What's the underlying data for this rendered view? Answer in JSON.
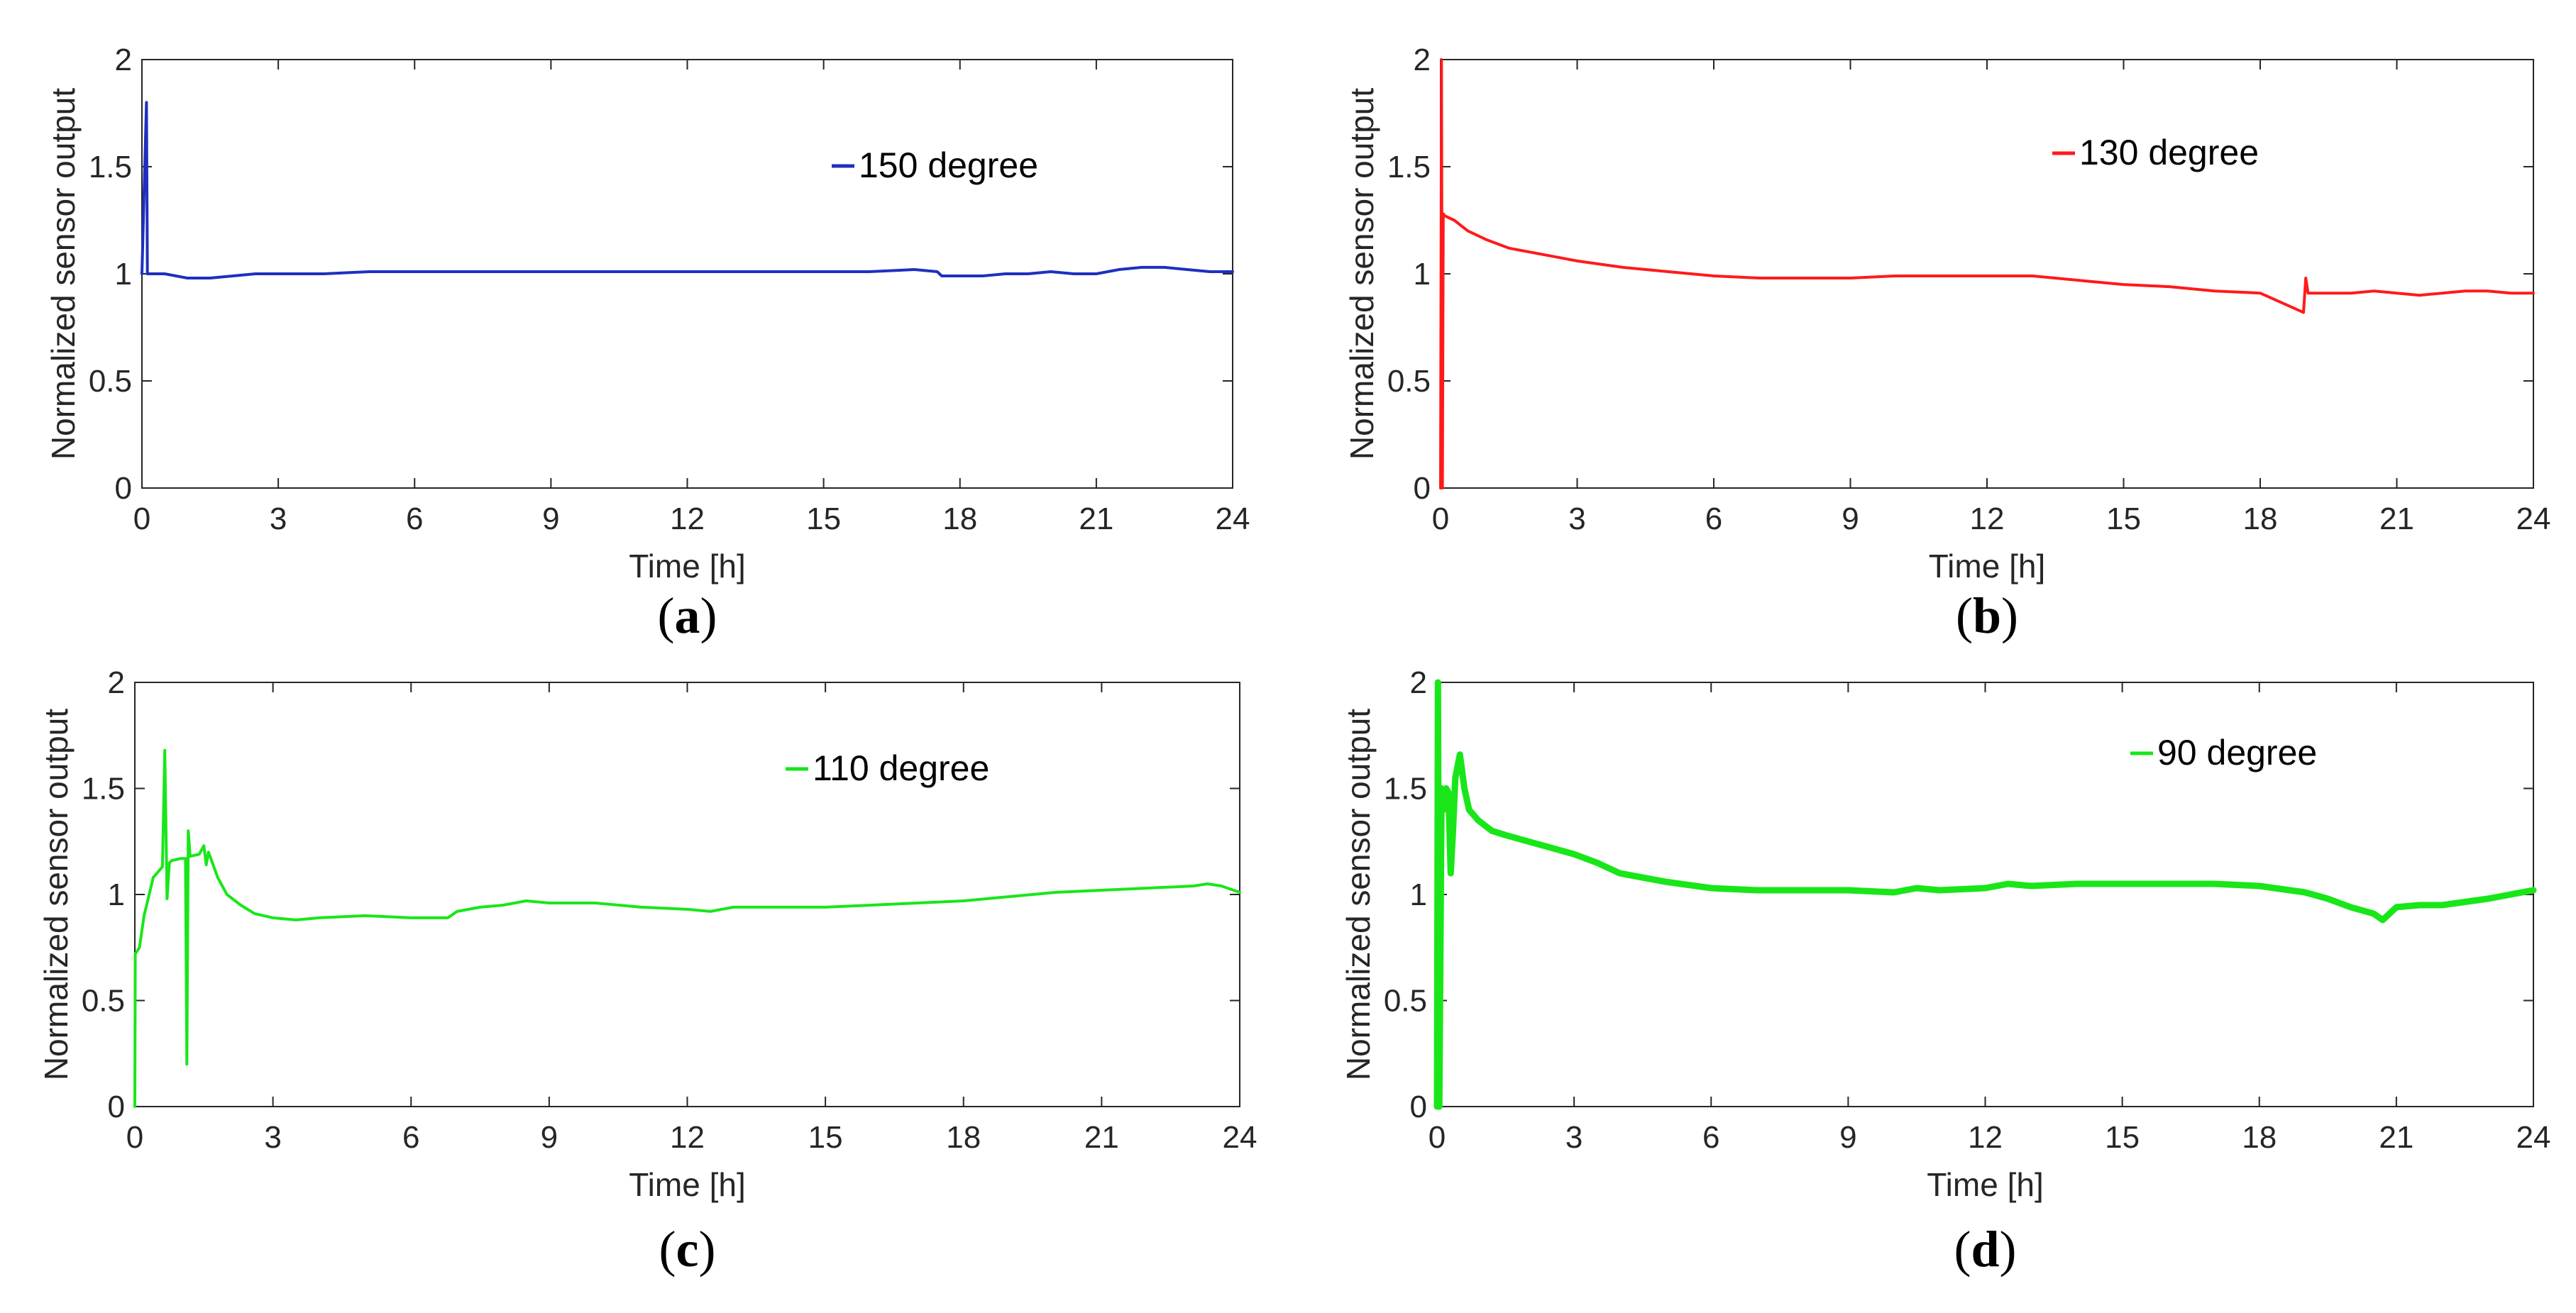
{
  "chart_data": [
    {
      "panel": "a",
      "panel_label": "a",
      "type": "line",
      "xlabel": "Time [h]",
      "ylabel": "Normalized sensor output",
      "xlim": [
        0,
        24
      ],
      "ylim": [
        0,
        2
      ],
      "xticks": [
        0,
        3,
        6,
        9,
        12,
        15,
        18,
        21,
        24
      ],
      "yticks": [
        0,
        0.5,
        1,
        1.5,
        2
      ],
      "legend_position": "top-right",
      "series": [
        {
          "name": "150 degree",
          "color": "#1f2fbf",
          "x": [
            0,
            0.1,
            0.12,
            0.2,
            0.5,
            1.0,
            1.5,
            2.0,
            2.5,
            3,
            4,
            5,
            6,
            7,
            8,
            9,
            10,
            11,
            12,
            13,
            14,
            15,
            16,
            17,
            17.5,
            17.6,
            18,
            18.5,
            19,
            19.5,
            20,
            20.5,
            21,
            21.5,
            22,
            22.5,
            23,
            23.5,
            24
          ],
          "values": [
            1.0,
            1.8,
            1.0,
            1.0,
            1.0,
            0.98,
            0.98,
            0.99,
            1.0,
            1.0,
            1.0,
            1.01,
            1.01,
            1.01,
            1.01,
            1.01,
            1.01,
            1.01,
            1.01,
            1.01,
            1.01,
            1.01,
            1.01,
            1.02,
            1.01,
            0.99,
            0.99,
            0.99,
            1.0,
            1.0,
            1.01,
            1.0,
            1.0,
            1.02,
            1.03,
            1.03,
            1.02,
            1.01,
            1.01
          ]
        }
      ]
    },
    {
      "panel": "b",
      "panel_label": "b",
      "type": "line",
      "xlabel": "Time [h]",
      "ylabel": "Normalized sensor output",
      "xlim": [
        0,
        24
      ],
      "ylim": [
        0,
        2
      ],
      "xticks": [
        0,
        3,
        6,
        9,
        12,
        15,
        18,
        21,
        24
      ],
      "yticks": [
        0,
        0.5,
        1,
        1.5,
        2
      ],
      "legend_position": "top-right",
      "series": [
        {
          "name": "130 degree",
          "color": "#ff1a1a",
          "x": [
            0,
            0.02,
            0.04,
            0.06,
            0.1,
            0.3,
            0.6,
            1.0,
            1.5,
            2.0,
            2.5,
            3,
            4,
            5,
            6,
            7,
            8,
            9,
            10,
            11,
            12,
            13,
            14,
            15,
            16,
            17,
            18,
            18.95,
            19.0,
            19.05,
            19.1,
            20,
            20.5,
            21,
            21.5,
            22,
            22.5,
            23,
            23.5,
            24
          ],
          "values": [
            0.0,
            2.0,
            0.0,
            1.28,
            1.27,
            1.25,
            1.2,
            1.16,
            1.12,
            1.1,
            1.08,
            1.06,
            1.03,
            1.01,
            0.99,
            0.98,
            0.98,
            0.98,
            0.99,
            0.99,
            0.99,
            0.99,
            0.97,
            0.95,
            0.94,
            0.92,
            0.91,
            0.82,
            0.98,
            0.91,
            0.91,
            0.91,
            0.92,
            0.91,
            0.9,
            0.91,
            0.92,
            0.92,
            0.91,
            0.91
          ]
        }
      ]
    },
    {
      "panel": "c",
      "panel_label": "c",
      "type": "line",
      "xlabel": "Time [h]",
      "ylabel": "Normalized sensor output",
      "xlim": [
        0,
        24
      ],
      "ylim": [
        0,
        2
      ],
      "xticks": [
        0,
        3,
        6,
        9,
        12,
        15,
        18,
        21,
        24
      ],
      "yticks": [
        0,
        0.5,
        1,
        1.5,
        2
      ],
      "legend_position": "top-right",
      "series": [
        {
          "name": "110 degree",
          "color": "#19e619",
          "x": [
            0,
            0.01,
            0.1,
            0.2,
            0.4,
            0.6,
            0.65,
            0.7,
            0.75,
            0.8,
            1.0,
            1.1,
            1.13,
            1.16,
            1.2,
            1.4,
            1.5,
            1.55,
            1.6,
            1.8,
            2.0,
            2.3,
            2.6,
            3,
            3.5,
            4,
            5,
            6,
            6.8,
            7.0,
            7.5,
            8,
            8.5,
            9,
            10,
            11,
            12,
            12.5,
            13,
            14,
            15,
            16,
            17,
            18,
            19,
            20,
            21,
            22,
            23,
            23.3,
            23.6,
            24
          ],
          "values": [
            0.0,
            0.72,
            0.75,
            0.9,
            1.08,
            1.13,
            1.68,
            0.98,
            1.15,
            1.16,
            1.17,
            1.17,
            0.2,
            1.3,
            1.18,
            1.19,
            1.23,
            1.14,
            1.2,
            1.08,
            1.0,
            0.95,
            0.91,
            0.89,
            0.88,
            0.89,
            0.9,
            0.89,
            0.89,
            0.92,
            0.94,
            0.95,
            0.97,
            0.96,
            0.96,
            0.94,
            0.93,
            0.92,
            0.94,
            0.94,
            0.94,
            0.95,
            0.96,
            0.97,
            0.99,
            1.01,
            1.02,
            1.03,
            1.04,
            1.05,
            1.04,
            1.01
          ]
        }
      ]
    },
    {
      "panel": "d",
      "panel_label": "d",
      "type": "line",
      "xlabel": "Time [h]",
      "ylabel": "Normalized sensor output",
      "xlim": [
        0,
        24
      ],
      "ylim": [
        0,
        2
      ],
      "xticks": [
        0,
        3,
        6,
        9,
        12,
        15,
        18,
        21,
        24
      ],
      "yticks": [
        0,
        0.5,
        1,
        1.5,
        2
      ],
      "legend_position": "top-right",
      "series": [
        {
          "name": "90 degree",
          "color": "#19e619",
          "x": [
            0,
            0.02,
            0.05,
            0.1,
            0.15,
            0.2,
            0.25,
            0.3,
            0.35,
            0.4,
            0.5,
            0.6,
            0.7,
            0.9,
            1.2,
            1.5,
            2.0,
            2.5,
            3,
            3.5,
            4,
            5,
            6,
            7,
            8,
            9,
            10,
            10.5,
            11,
            12,
            12.5,
            13,
            14,
            15,
            16,
            17,
            18,
            19,
            19.5,
            20,
            20.5,
            20.7,
            21,
            21.5,
            22,
            23,
            24
          ],
          "values": [
            0.0,
            2.0,
            0.0,
            1.5,
            1.4,
            1.5,
            1.48,
            1.1,
            1.3,
            1.55,
            1.66,
            1.5,
            1.4,
            1.35,
            1.3,
            1.28,
            1.25,
            1.22,
            1.19,
            1.15,
            1.1,
            1.06,
            1.03,
            1.02,
            1.02,
            1.02,
            1.01,
            1.03,
            1.02,
            1.03,
            1.05,
            1.04,
            1.05,
            1.05,
            1.05,
            1.05,
            1.04,
            1.01,
            0.98,
            0.94,
            0.91,
            0.88,
            0.94,
            0.95,
            0.95,
            0.98,
            1.02
          ]
        }
      ]
    }
  ]
}
